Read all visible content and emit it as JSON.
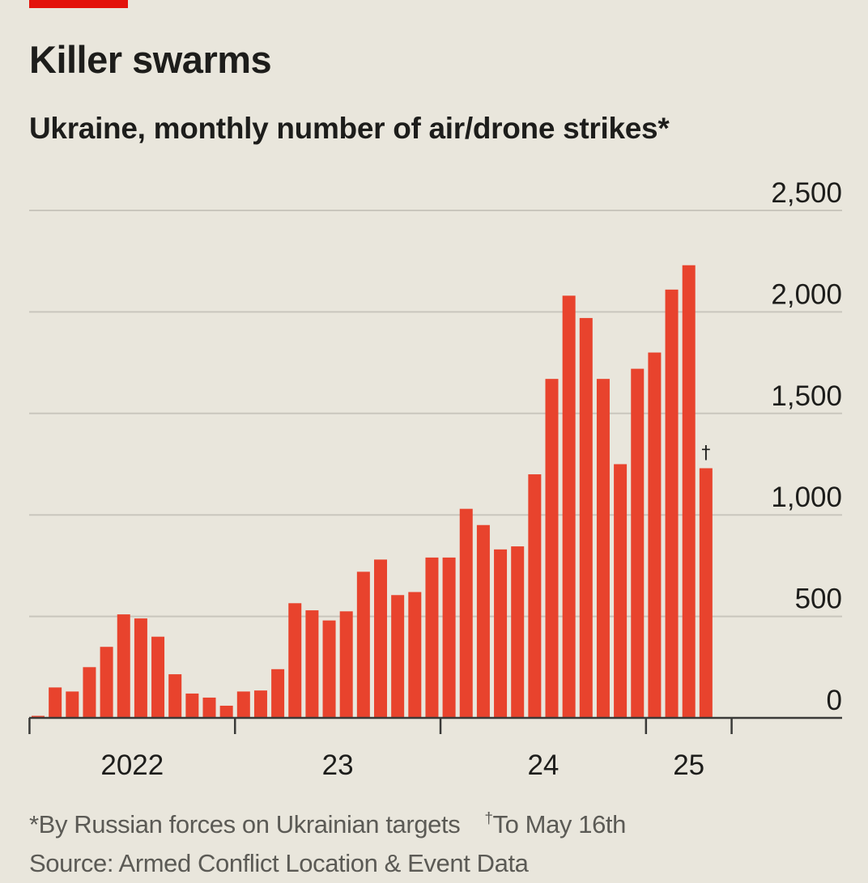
{
  "title": "Killer swarms",
  "subtitle": "Ukraine, monthly number of air/drone strikes*",
  "footnote_star": "*By Russian forces on Ukrainian targets",
  "footnote_dagger_mark": "†",
  "footnote_dagger_text": "To May 16th",
  "source": "Source: Armed Conflict Location & Event Data",
  "colors": {
    "bar": "#e8432d",
    "background": "#e9e6dc",
    "grid": "#c9c6bd",
    "axis": "#3a3a38",
    "brand": "#e3120b"
  },
  "chart_data": {
    "type": "bar",
    "title": "Killer swarms",
    "subtitle": "Ukraine, monthly number of air/drone strikes*",
    "ylim": [
      0,
      2500
    ],
    "yticks": [
      0,
      500,
      1000,
      1500,
      2000,
      2500
    ],
    "ytick_labels": [
      "0",
      "500",
      "1,000",
      "1,500",
      "2,000",
      "2,500"
    ],
    "yaxis_side": "right",
    "grid": true,
    "legend": "none",
    "x_tick_labels": [
      "2022",
      "23",
      "24",
      "25"
    ],
    "year_starts": [
      0,
      12,
      24,
      36
    ],
    "categories": [
      "Jan 2022",
      "Feb 2022",
      "Mar 2022",
      "Apr 2022",
      "May 2022",
      "Jun 2022",
      "Jul 2022",
      "Aug 2022",
      "Sep 2022",
      "Oct 2022",
      "Nov 2022",
      "Dec 2022",
      "Jan 2023",
      "Feb 2023",
      "Mar 2023",
      "Apr 2023",
      "May 2023",
      "Jun 2023",
      "Jul 2023",
      "Aug 2023",
      "Sep 2023",
      "Oct 2023",
      "Nov 2023",
      "Dec 2023",
      "Jan 2024",
      "Feb 2024",
      "Mar 2024",
      "Apr 2024",
      "May 2024",
      "Jun 2024",
      "Jul 2024",
      "Aug 2024",
      "Sep 2024",
      "Oct 2024",
      "Nov 2024",
      "Dec 2024",
      "Jan 2025",
      "Feb 2025",
      "Mar 2025",
      "Apr 2025",
      "May 2025"
    ],
    "values": [
      10,
      150,
      130,
      250,
      350,
      510,
      490,
      400,
      215,
      120,
      100,
      60,
      130,
      135,
      240,
      565,
      530,
      480,
      525,
      720,
      780,
      605,
      620,
      790,
      790,
      1030,
      950,
      830,
      845,
      1200,
      1670,
      2080,
      1970,
      1670,
      1250,
      1720,
      1800,
      2110,
      2230,
      1230,
      null
    ],
    "annotations": [
      {
        "category": "May 2025",
        "text": "†",
        "note": "To May 16th"
      }
    ]
  }
}
